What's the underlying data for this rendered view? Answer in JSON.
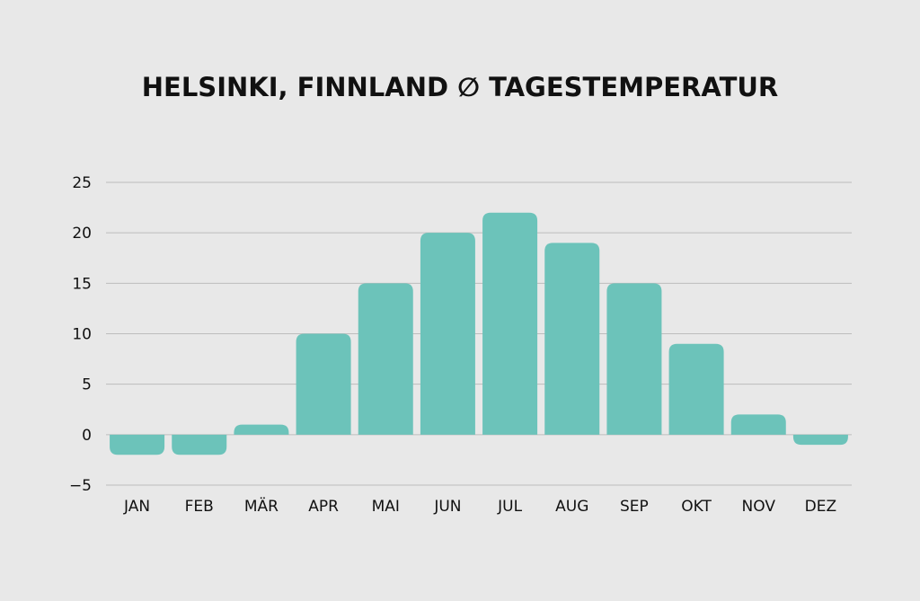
{
  "chart_data": {
    "type": "bar",
    "title": "HELSINKI, FINNLAND ∅ TAGESTEMPERATUR",
    "xlabel": "",
    "ylabel": "",
    "categories": [
      "JAN",
      "FEB",
      "MÄR",
      "APR",
      "MAI",
      "JUN",
      "JUL",
      "AUG",
      "SEP",
      "OKT",
      "NOV",
      "DEZ"
    ],
    "values": [
      -2,
      -2,
      1,
      10,
      15,
      20,
      22,
      19,
      15,
      9,
      2,
      -1
    ],
    "ylim": [
      -5,
      25
    ],
    "yticks": [
      25,
      20,
      15,
      10,
      5,
      0,
      -5
    ],
    "ytick_labels": [
      "25",
      "20",
      "15",
      "10",
      "5",
      "0",
      "−5"
    ],
    "grid": true,
    "legend": "none",
    "bar_color": "#6cc3ba",
    "background_color": "#e8e8e8"
  }
}
